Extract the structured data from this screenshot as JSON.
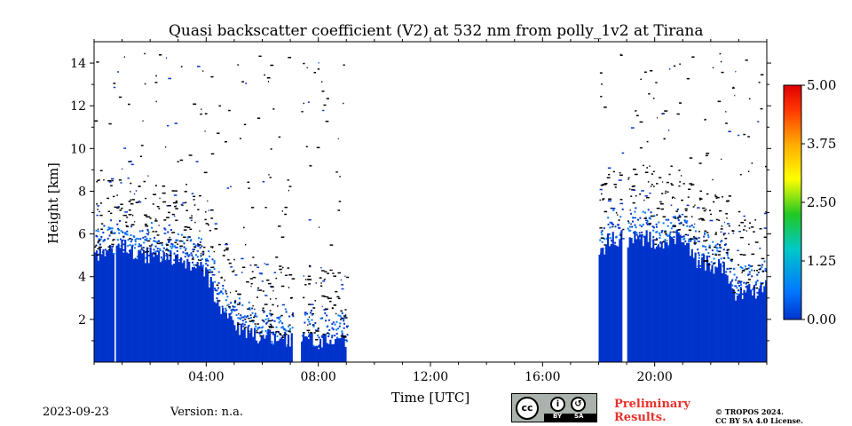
{
  "chart_data": {
    "type": "heatmap",
    "title": "Quasi backscatter coefficient (V2) at 532 nm from polly_1v2 at Tirana",
    "xlabel": "Time [UTC]",
    "ylabel": "Height [km]",
    "xlim_hours": [
      0,
      24
    ],
    "ylim_km": [
      0,
      15
    ],
    "x_tick_hours": [
      4,
      8,
      12,
      16,
      20
    ],
    "x_tick_labels": [
      "04:00",
      "08:00",
      "12:00",
      "16:00",
      "20:00"
    ],
    "y_ticks": [
      2,
      4,
      6,
      8,
      10,
      12,
      14
    ],
    "y_tick_labels": [
      "2",
      "4",
      "6",
      "8",
      "10",
      "12",
      "14"
    ],
    "colorbar": {
      "range": [
        0.0,
        5.0
      ],
      "ticks": [
        0.0,
        1.25,
        2.5,
        3.75,
        5.0
      ],
      "tick_labels": [
        "0.00",
        "1.25",
        "2.50",
        "3.75",
        "5.00"
      ],
      "colormap": [
        "#0033cc",
        "#0077ff",
        "#00c8c8",
        "#22c822",
        "#ffff00",
        "#ffaa00",
        "#ff3300",
        "#dd0000"
      ]
    },
    "signal_top_km": [
      [
        0.0,
        5.0
      ],
      [
        0.5,
        5.2
      ],
      [
        1.0,
        5.5
      ],
      [
        1.5,
        5.0
      ],
      [
        2.0,
        5.0
      ],
      [
        2.5,
        4.9
      ],
      [
        3.0,
        4.8
      ],
      [
        3.5,
        4.5
      ],
      [
        4.0,
        4.2
      ],
      [
        4.3,
        3.2
      ],
      [
        4.7,
        2.2
      ],
      [
        5.0,
        1.6
      ],
      [
        5.5,
        1.3
      ],
      [
        6.0,
        1.2
      ],
      [
        6.5,
        1.2
      ],
      [
        7.0,
        1.0
      ],
      [
        7.2,
        1.1
      ],
      [
        7.5,
        1.1
      ],
      [
        8.0,
        1.0
      ],
      [
        8.5,
        0.9
      ],
      [
        9.0,
        0.9
      ],
      [
        18.0,
        5.0
      ],
      [
        18.3,
        5.6
      ],
      [
        18.5,
        5.8
      ],
      [
        19.0,
        5.6
      ],
      [
        19.3,
        5.8
      ],
      [
        19.8,
        5.8
      ],
      [
        20.0,
        5.5
      ],
      [
        20.5,
        5.6
      ],
      [
        20.8,
        6.0
      ],
      [
        21.2,
        5.2
      ],
      [
        21.5,
        4.8
      ],
      [
        22.0,
        4.5
      ],
      [
        22.3,
        4.6
      ],
      [
        22.5,
        4.4
      ],
      [
        22.8,
        3.0
      ],
      [
        23.0,
        3.3
      ],
      [
        23.5,
        3.3
      ],
      [
        24.0,
        3.6
      ]
    ],
    "data_gaps_hours": [
      [
        0.72,
        0.76
      ],
      [
        7.05,
        7.35
      ],
      [
        9.0,
        18.0
      ],
      [
        18.85,
        19.0
      ]
    ],
    "noise_top_km": 14.5,
    "value_range_shown": [
      0.0,
      0.6
    ]
  },
  "footer": {
    "date": "2023-09-23",
    "version": "Version: n.a.",
    "preliminary_line1": "Preliminary",
    "preliminary_line2": "Results.",
    "copyright_line1": "© TROPOS 2024.",
    "copyright_line2": "CC BY SA 4.0 License.",
    "license_badge": {
      "cc": "cc",
      "by": "BY",
      "sa": "SA"
    }
  }
}
